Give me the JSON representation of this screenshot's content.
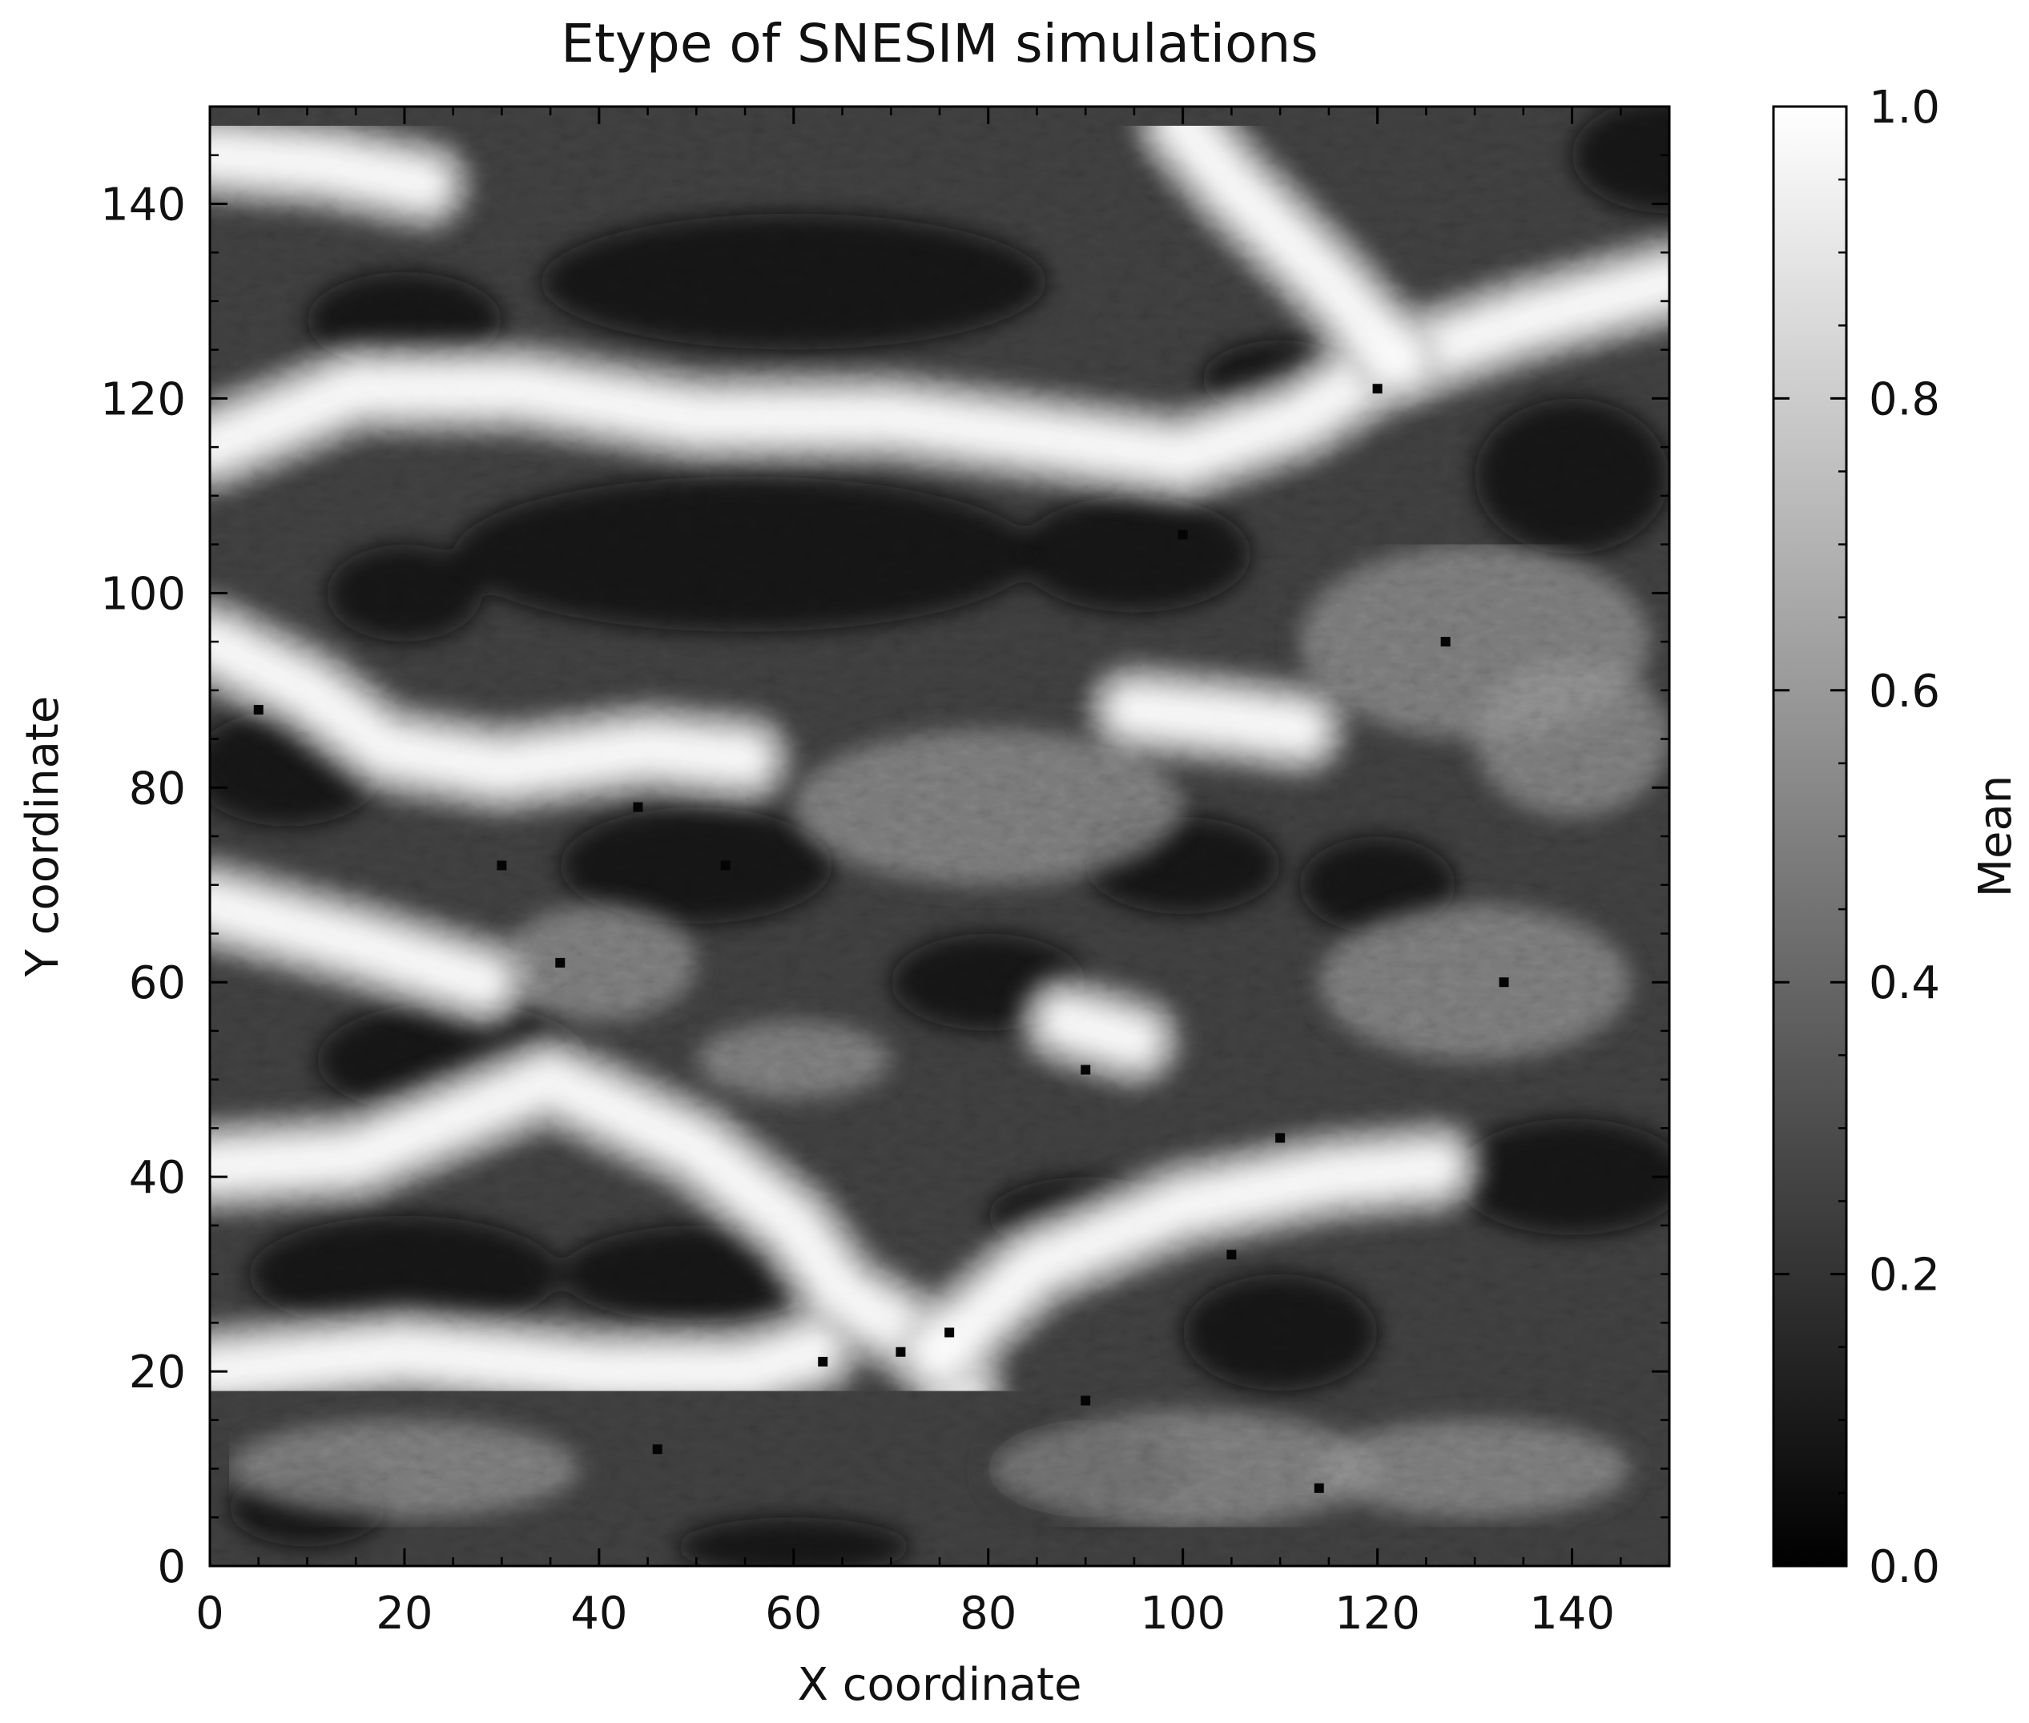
{
  "chart_data": {
    "type": "heatmap",
    "title": "Etype of SNESIM simulations",
    "xlabel": "X coordinate",
    "ylabel": "Y coordinate",
    "xlim": [
      0,
      150
    ],
    "ylim": [
      0,
      150
    ],
    "xticks": [
      "0",
      "20",
      "40",
      "60",
      "80",
      "100",
      "120",
      "140"
    ],
    "yticks": [
      "0",
      "20",
      "40",
      "60",
      "80",
      "100",
      "120",
      "140"
    ],
    "colorbar": {
      "label": "Mean",
      "range": [
        0.0,
        1.0
      ],
      "ticks": [
        "0.0",
        "0.2",
        "0.4",
        "0.6",
        "0.8",
        "1.0"
      ],
      "colormap": "gray",
      "low_color": "#000000",
      "high_color": "#ffffff"
    },
    "grid_size": [
      150,
      150
    ],
    "bright_channels": [
      {
        "desc": "top-left streak",
        "points": [
          [
            0,
            145
          ],
          [
            12,
            144
          ],
          [
            22,
            142
          ]
        ]
      },
      {
        "desc": "upper channel",
        "points": [
          [
            0,
            115
          ],
          [
            15,
            121
          ],
          [
            32,
            121
          ],
          [
            50,
            118
          ],
          [
            70,
            118
          ],
          [
            85,
            116
          ],
          [
            100,
            114
          ],
          [
            112,
            118
          ],
          [
            120,
            123
          ],
          [
            135,
            128
          ],
          [
            150,
            132
          ]
        ]
      },
      {
        "desc": "upper-right channel",
        "points": [
          [
            100,
            148
          ],
          [
            105,
            142
          ],
          [
            115,
            132
          ],
          [
            122,
            124
          ]
        ]
      },
      {
        "desc": "mid-left channel",
        "points": [
          [
            0,
            95
          ],
          [
            10,
            90
          ],
          [
            18,
            84
          ],
          [
            30,
            82
          ],
          [
            45,
            84
          ],
          [
            55,
            83
          ]
        ]
      },
      {
        "desc": "mid-right bright blob",
        "points": [
          [
            95,
            88
          ],
          [
            105,
            87
          ],
          [
            112,
            86
          ]
        ]
      },
      {
        "desc": "left channel at 65",
        "points": [
          [
            0,
            68
          ],
          [
            15,
            64
          ],
          [
            28,
            60
          ]
        ]
      },
      {
        "desc": "central bright blob",
        "points": [
          [
            88,
            56
          ],
          [
            95,
            54
          ]
        ]
      },
      {
        "desc": "diagonal channel",
        "points": [
          [
            0,
            41
          ],
          [
            15,
            42
          ],
          [
            35,
            50
          ],
          [
            50,
            43
          ],
          [
            60,
            35
          ],
          [
            65,
            28
          ],
          [
            75,
            22
          ],
          [
            77,
            18
          ]
        ]
      },
      {
        "desc": "lower-right channel",
        "points": [
          [
            75,
            22
          ],
          [
            85,
            31
          ],
          [
            100,
            37
          ],
          [
            115,
            40
          ],
          [
            126,
            41
          ]
        ]
      },
      {
        "desc": "lower left band",
        "points": [
          [
            0,
            20
          ],
          [
            20,
            22
          ],
          [
            40,
            20
          ],
          [
            55,
            20
          ],
          [
            62,
            22
          ]
        ]
      }
    ]
  }
}
